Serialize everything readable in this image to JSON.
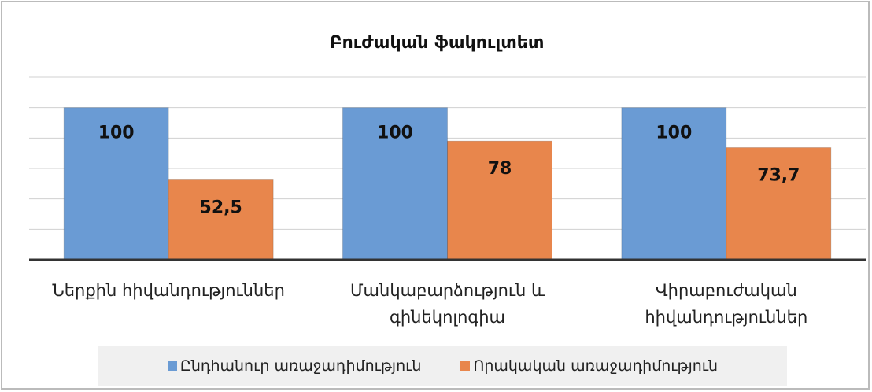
{
  "chart_data": {
    "type": "bar",
    "title": "Բուժական ֆակուլտետ",
    "categories": [
      "Ներքին հիվանդություններ",
      "Մանկաբարձություն և գինեկոլոգիա",
      "Վիրաբուժական հիվանդություններ"
    ],
    "series": [
      {
        "name": "Ընդհանուր առաջադիմություն",
        "color": "#6a9bd4",
        "values": [
          100,
          100,
          100
        ],
        "value_labels": [
          "100",
          "100",
          "100"
        ]
      },
      {
        "name": "Որակական առաջադիմություն",
        "color": "#e8864c",
        "values": [
          52.5,
          78,
          73.7
        ],
        "value_labels": [
          "52,5",
          "78",
          "73,7"
        ]
      }
    ],
    "ylim": [
      0,
      120
    ],
    "yticks": [
      0,
      20,
      40,
      60,
      80,
      100,
      120
    ],
    "grid": true
  }
}
